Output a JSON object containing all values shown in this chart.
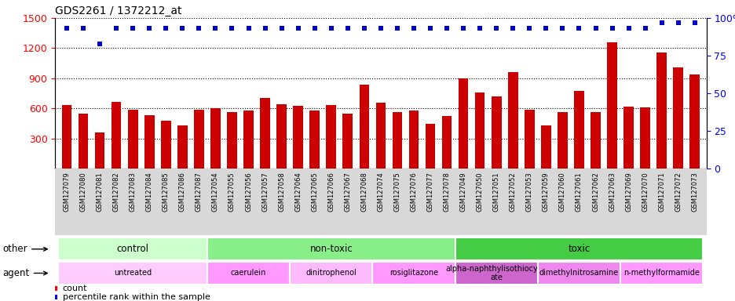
{
  "title": "GDS2261 / 1372212_at",
  "samples": [
    "GSM127079",
    "GSM127080",
    "GSM127081",
    "GSM127082",
    "GSM127083",
    "GSM127084",
    "GSM127085",
    "GSM127086",
    "GSM127087",
    "GSM127054",
    "GSM127055",
    "GSM127056",
    "GSM127057",
    "GSM127058",
    "GSM127064",
    "GSM127065",
    "GSM127066",
    "GSM127067",
    "GSM127068",
    "GSM127074",
    "GSM127075",
    "GSM127076",
    "GSM127077",
    "GSM127078",
    "GSM127049",
    "GSM127050",
    "GSM127051",
    "GSM127052",
    "GSM127053",
    "GSM127059",
    "GSM127060",
    "GSM127061",
    "GSM127062",
    "GSM127063",
    "GSM127069",
    "GSM127070",
    "GSM127071",
    "GSM127072",
    "GSM127073"
  ],
  "counts": [
    630,
    545,
    360,
    665,
    590,
    530,
    475,
    430,
    590,
    605,
    560,
    580,
    700,
    640,
    625,
    575,
    635,
    550,
    835,
    655,
    560,
    575,
    445,
    525,
    895,
    760,
    720,
    960,
    590,
    430,
    560,
    775,
    560,
    1255,
    620,
    610,
    1155,
    1010,
    940
  ],
  "percentile_ranks": [
    93,
    93,
    83,
    93,
    93,
    93,
    93,
    93,
    93,
    93,
    93,
    93,
    93,
    93,
    93,
    93,
    93,
    93,
    93,
    93,
    93,
    93,
    93,
    93,
    93,
    93,
    93,
    93,
    93,
    93,
    93,
    93,
    93,
    93,
    93,
    93,
    97,
    97,
    97
  ],
  "bar_color": "#cc0000",
  "dot_color": "#0000cc",
  "ylim_left": [
    0,
    1500
  ],
  "ylim_right": [
    0,
    100
  ],
  "yticks_left": [
    300,
    600,
    900,
    1200,
    1500
  ],
  "yticks_right": [
    0,
    25,
    50,
    75,
    100
  ],
  "other_groups": [
    {
      "label": "control",
      "start": 0,
      "end": 9,
      "color": "#ccffcc"
    },
    {
      "label": "non-toxic",
      "start": 9,
      "end": 24,
      "color": "#66dd66"
    },
    {
      "label": "toxic",
      "start": 24,
      "end": 39,
      "color": "#44cc44"
    }
  ],
  "agent_groups": [
    {
      "label": "untreated",
      "start": 0,
      "end": 9,
      "color": "#ffccff"
    },
    {
      "label": "caerulein",
      "start": 9,
      "end": 14,
      "color": "#ff88ff"
    },
    {
      "label": "dinitrophenol",
      "start": 14,
      "end": 19,
      "color": "#ffaaff"
    },
    {
      "label": "rosiglitazone",
      "start": 19,
      "end": 24,
      "color": "#ff88ff"
    },
    {
      "label": "alpha-naphthylisothiocyan\nate",
      "start": 24,
      "end": 29,
      "color": "#cc44cc"
    },
    {
      "label": "dimethylnitrosamine",
      "start": 29,
      "end": 34,
      "color": "#ee66ee"
    },
    {
      "label": "n-methylformamide",
      "start": 34,
      "end": 39,
      "color": "#ff88ff"
    }
  ]
}
